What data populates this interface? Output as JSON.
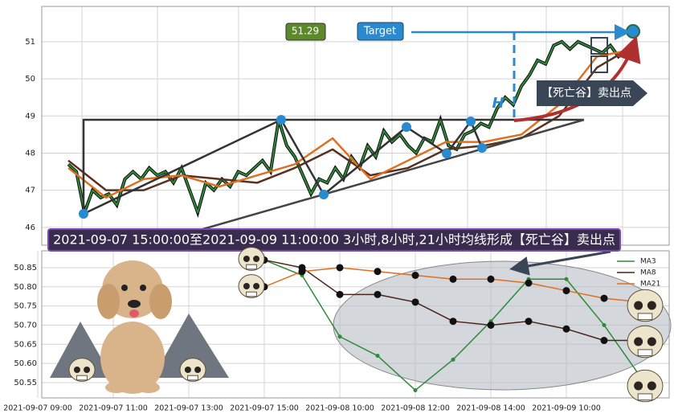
{
  "chart_data": [
    {
      "type": "line",
      "title": "2021-09-07 15:00:00至2021-09-09 11:00:00 3小时,8小时,21小时均线形成【死亡谷】卖出点",
      "annotations": [
        "51.29",
        "Target",
        "H",
        "【死亡谷】卖出点"
      ],
      "ylim": [
        45.52,
        51.95
      ],
      "yticks": [
        46,
        47,
        48,
        49,
        50,
        51
      ],
      "grid": true,
      "series": [
        {
          "color": "#2e8b3a",
          "values": [
            47.7,
            47.5,
            46.4,
            47.0,
            46.8,
            46.9,
            46.6,
            47.3,
            47.5,
            47.3,
            47.6,
            47.4,
            47.5,
            47.2,
            47.6,
            47.0,
            46.4,
            47.2,
            47.0,
            47.3,
            47.1,
            47.5,
            47.4,
            47.6,
            47.8,
            47.5,
            48.9,
            48.2,
            47.9,
            47.4,
            46.9,
            47.3,
            47.2,
            47.6,
            47.3,
            47.9,
            47.6,
            48.2,
            47.9,
            48.6,
            48.3,
            48.5,
            48.2,
            48.0,
            48.4,
            48.3,
            48.9,
            48.2,
            48.1,
            48.5,
            48.6,
            48.8,
            48.7,
            49.2,
            49.5,
            49.3,
            49.8,
            50.1,
            50.5,
            50.4,
            50.9,
            51.0,
            50.8,
            51.0,
            50.9,
            50.8,
            50.7,
            50.9,
            50.6,
            50.8,
            51.0
          ]
        },
        {
          "color": "#5a3020",
          "values": [
            47.8,
            47.0,
            47.0,
            47.4,
            47.3,
            47.2,
            47.6,
            48.1,
            47.4,
            47.6,
            48.1,
            48.2,
            48.4,
            49.0,
            50.3,
            50.9
          ]
        },
        {
          "color": "#e07020",
          "values": [
            47.6,
            46.8,
            47.3,
            47.4,
            47.1,
            47.4,
            47.7,
            48.4,
            47.3,
            47.8,
            48.3,
            48.3,
            48.5,
            49.3,
            50.6,
            50.8
          ]
        }
      ]
    },
    {
      "type": "line",
      "categories": [
        "2021-09-07 09:00",
        null,
        "2021-09-07 11:00",
        null,
        "2021-09-07 13:00",
        null,
        "2021-09-07 15:00",
        null,
        "2021-09-08 10:00",
        null,
        "2021-09-08 12:00",
        null,
        "2021-09-08 14:00",
        null,
        "2021-09-09 10:00",
        null,
        null
      ],
      "ylim": [
        50.51,
        50.894
      ],
      "yticks": [
        50.55,
        {
          "value": 50.6,
          "label": "50.60"
        },
        50.65,
        {
          "value": 50.7,
          "label": "50.70"
        },
        50.75,
        {
          "value": 50.8,
          "label": "50.80"
        },
        50.85
      ],
      "grid": true,
      "series": [
        {
          "name": "MA3",
          "color": "#2e8b3a",
          "values": [
            null,
            null,
            null,
            null,
            null,
            null,
            50.87,
            50.83,
            50.67,
            50.62,
            50.53,
            50.61,
            50.71,
            50.82,
            50.82,
            50.7,
            50.56
          ]
        },
        {
          "name": "MA8",
          "color": "#4a2418",
          "values": [
            null,
            null,
            null,
            null,
            null,
            null,
            50.87,
            50.85,
            50.78,
            50.78,
            50.76,
            50.71,
            50.7,
            50.71,
            50.69,
            50.66,
            50.66
          ]
        },
        {
          "name": "MA21",
          "color": "#e07020",
          "values": [
            null,
            null,
            null,
            null,
            null,
            null,
            50.8,
            50.84,
            50.85,
            50.84,
            50.83,
            50.82,
            50.82,
            50.81,
            50.79,
            50.77,
            50.76
          ]
        }
      ]
    }
  ]
}
